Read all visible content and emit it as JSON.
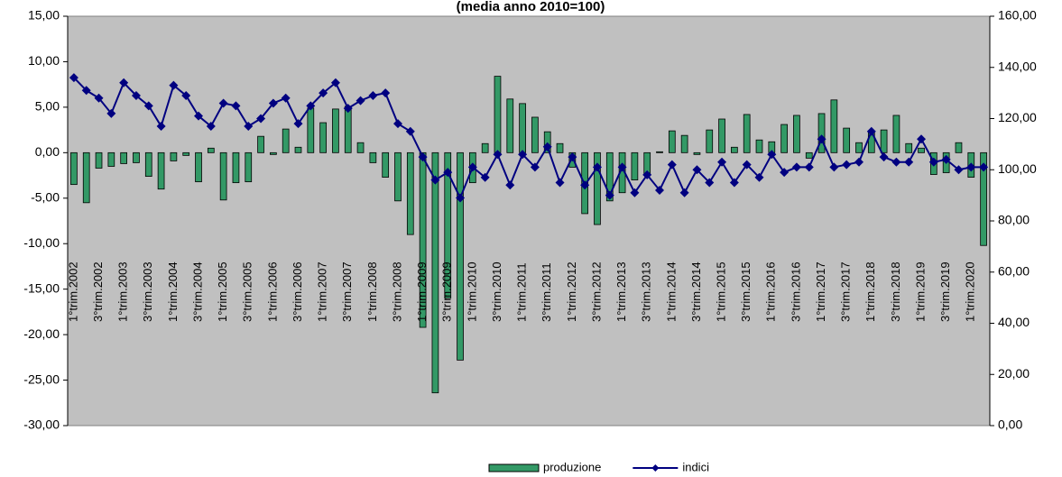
{
  "chart_data": {
    "type": "bar",
    "title": "(media anno 2010=100)",
    "categories": [
      "1°trim.2002",
      null,
      "3°trim.2002",
      null,
      "1°trim.2003",
      null,
      "3°trim.2003",
      null,
      "1°trim.2004",
      null,
      "3°trim.2004",
      null,
      "1°trim.2005",
      null,
      "3°trim.2005",
      null,
      "1°trim.2006",
      null,
      "3°trim.2006",
      null,
      "1°trim.2007",
      null,
      "3°trim.2007",
      null,
      "1°trim.2008",
      null,
      "3°trim.2008",
      null,
      "1°trim.2009",
      null,
      "3°trim.2009",
      null,
      "1°trim.2010",
      null,
      "3°trim.2010",
      null,
      "1°trim.2011",
      null,
      "3°trim.2011",
      null,
      "1°trim.2012",
      null,
      "3°trim.2012",
      null,
      "1°trim.2013",
      null,
      "3°trim.2013",
      null,
      "1°trim.2014",
      null,
      "3°trim.2014",
      null,
      "1°trim.2015",
      null,
      "3°trim.2015",
      null,
      "1°trim.2016",
      null,
      "3°trim.2016",
      null,
      "1°trim.2017",
      null,
      "3°trim.2017",
      null,
      "1°trim.2018",
      null,
      "3°trim.2018",
      null,
      "1°trim.2019",
      null,
      "3°trim.2019",
      null,
      "1°trim.2020",
      null
    ],
    "series": [
      {
        "name": "produzione",
        "type": "bar",
        "color": "#339966",
        "values": [
          -3.5,
          -5.5,
          -1.7,
          -1.5,
          -1.2,
          -1.1,
          -2.6,
          -4.0,
          -0.9,
          -0.3,
          -3.2,
          0.5,
          -5.2,
          -3.3,
          -3.2,
          1.8,
          -0.2,
          2.6,
          0.6,
          4.9,
          3.3,
          4.8,
          5.1,
          1.1,
          -1.1,
          -2.7,
          -5.3,
          -9.0,
          -19.2,
          -26.4,
          -16.0,
          -22.8,
          -3.3,
          1.0,
          8.4,
          5.9,
          5.4,
          3.9,
          2.3,
          1.0,
          -1.6,
          -6.7,
          -7.9,
          -5.3,
          -4.4,
          -3.0,
          -2.4,
          0.1,
          2.4,
          1.9,
          -0.2,
          2.5,
          3.7,
          0.6,
          4.2,
          1.4,
          1.2,
          3.1,
          4.1,
          -0.6,
          4.3,
          5.8,
          2.7,
          1.1,
          2.2,
          2.5,
          4.1,
          1.0,
          0.5,
          -2.4,
          -2.2,
          1.1,
          -2.7,
          -10.2
        ]
      },
      {
        "name": "indici",
        "type": "line",
        "axis": "y2",
        "color": "#000080",
        "values": [
          136,
          131,
          128,
          122,
          134,
          129,
          125,
          117,
          133,
          129,
          121,
          117,
          126,
          125,
          117,
          120,
          126,
          128,
          118,
          125,
          130,
          134,
          124,
          127,
          129,
          130,
          118,
          115,
          105,
          96,
          99,
          89,
          101,
          97,
          106,
          94,
          106,
          101,
          109,
          95,
          105,
          94,
          101,
          90,
          101,
          91,
          98,
          92,
          102,
          91,
          100,
          95,
          103,
          95,
          102,
          97,
          106,
          99,
          101,
          101,
          112,
          101,
          102,
          103,
          115,
          105,
          103,
          103,
          112,
          103,
          104,
          100,
          101,
          101
        ]
      }
    ],
    "ylim": [
      -30,
      15
    ],
    "yticks": [
      {
        "value": -30,
        "label": "-30,00"
      },
      {
        "value": -25,
        "label": "-25,00"
      },
      {
        "value": -20,
        "label": "-20,00"
      },
      {
        "value": -15,
        "label": "-15,00"
      },
      {
        "value": -10,
        "label": "-10,00"
      },
      {
        "value": -5,
        "label": "-5,00"
      },
      {
        "value": 0,
        "label": "0,00"
      },
      {
        "value": 5,
        "label": "5,00"
      },
      {
        "value": 10,
        "label": "10,00"
      },
      {
        "value": 15,
        "label": "15,00"
      }
    ],
    "y2lim": [
      0,
      160
    ],
    "y2ticks": [
      {
        "value": 0,
        "label": "0,00"
      },
      {
        "value": 20,
        "label": "20,00"
      },
      {
        "value": 40,
        "label": "40,00"
      },
      {
        "value": 60,
        "label": "60,00"
      },
      {
        "value": 80,
        "label": "80,00"
      },
      {
        "value": 100,
        "label": "100,00"
      },
      {
        "value": 120,
        "label": "120,00"
      },
      {
        "value": 140,
        "label": "140,00"
      },
      {
        "value": 160,
        "label": "160,00"
      }
    ],
    "grid": false,
    "legend": "bottom"
  }
}
